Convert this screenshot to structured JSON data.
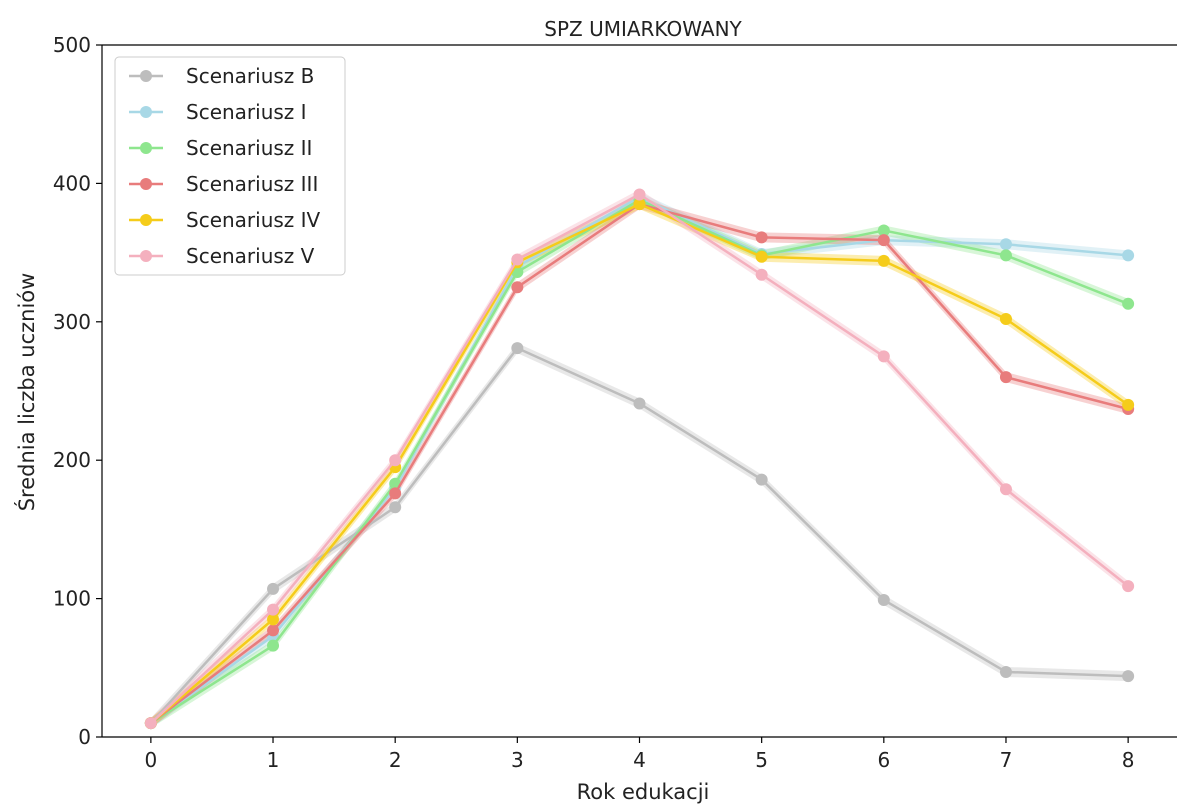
{
  "chart_data": {
    "type": "line",
    "title": "SPZ UMIARKOWANY",
    "xlabel": "Rok edukacji",
    "ylabel": "Średnia liczba uczniów",
    "x": [
      0,
      1,
      2,
      3,
      4,
      5,
      6,
      7,
      8
    ],
    "xlim": [
      -0.4,
      8.4
    ],
    "ylim": [
      0,
      500
    ],
    "xticks": [
      "0",
      "1",
      "2",
      "3",
      "4",
      "5",
      "6",
      "7",
      "8"
    ],
    "yticks": [
      "0",
      "100",
      "200",
      "300",
      "400",
      "500"
    ],
    "legend_position": "top-left",
    "grid": false,
    "confidence_band": true,
    "series": [
      {
        "name": "Scenariusz B",
        "color": "#bdbdbd",
        "values": [
          10,
          107,
          166,
          281,
          241,
          186,
          99,
          47,
          44
        ]
      },
      {
        "name": "Scenariusz I",
        "color": "#a8d8e6",
        "values": [
          10,
          73,
          180,
          340,
          390,
          349,
          359,
          356,
          348
        ]
      },
      {
        "name": "Scenariusz II",
        "color": "#8ee68e",
        "values": [
          10,
          66,
          183,
          336,
          388,
          348,
          366,
          348,
          313
        ]
      },
      {
        "name": "Scenariusz III",
        "color": "#e87c7c",
        "values": [
          10,
          77,
          176,
          325,
          385,
          361,
          359,
          260,
          237
        ]
      },
      {
        "name": "Scenariusz IV",
        "color": "#f5cc1a",
        "values": [
          10,
          85,
          195,
          343,
          385,
          347,
          344,
          302,
          240
        ]
      },
      {
        "name": "Scenariusz V",
        "color": "#f4b0be",
        "values": [
          10,
          92,
          200,
          345,
          392,
          334,
          275,
          179,
          109
        ]
      }
    ]
  }
}
